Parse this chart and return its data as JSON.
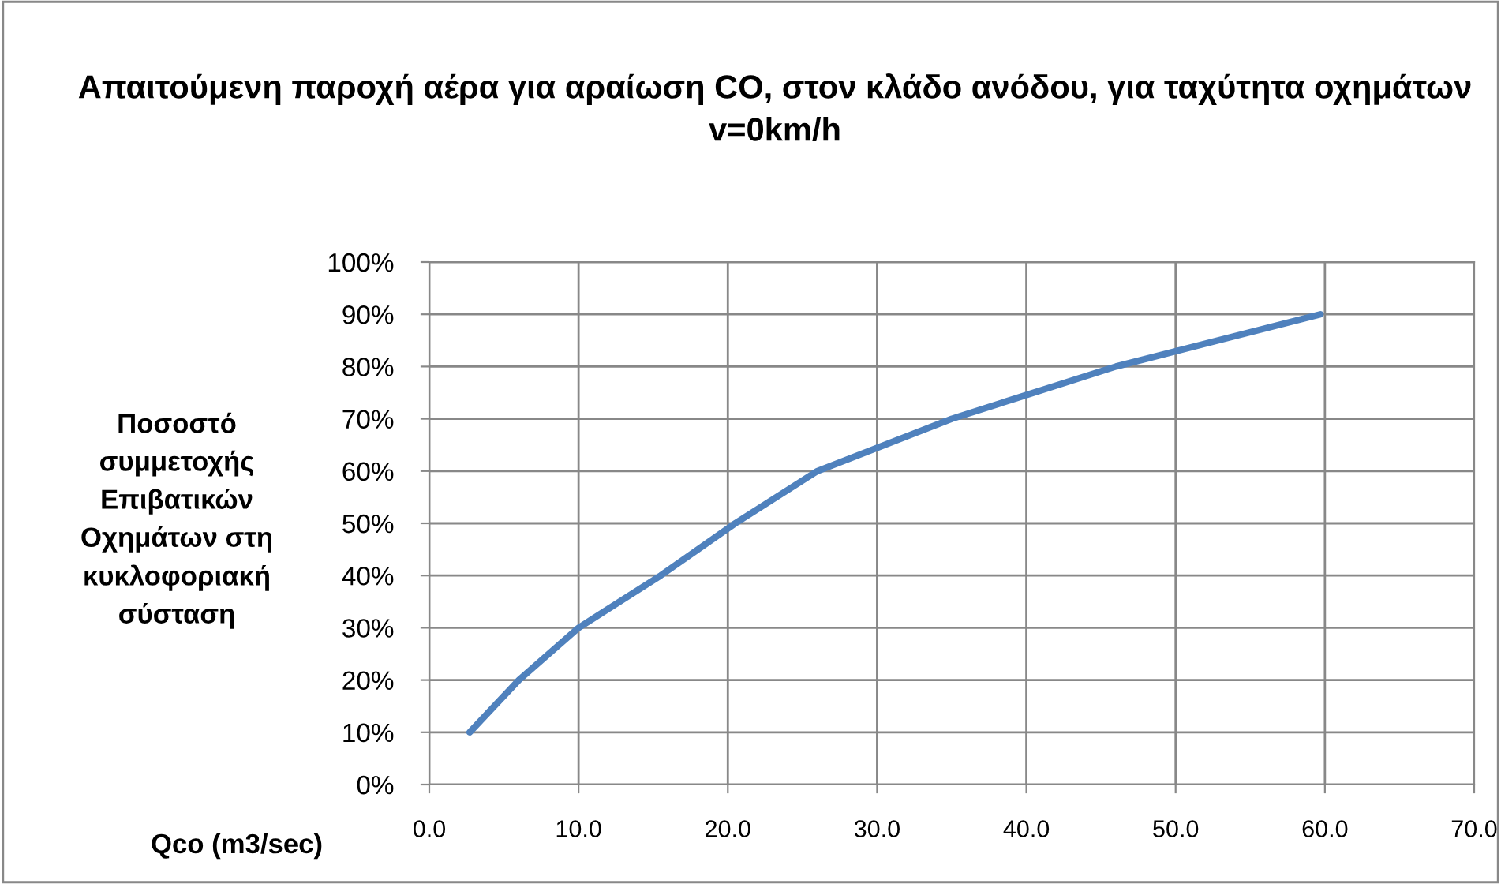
{
  "chart_data": {
    "type": "line",
    "title": "Απαιτούμενη παροχή αέρα για αραίωση CO, στον κλάδο ανόδου, για ταχύτητα οχημάτων v=0km/h",
    "xlabel": "Qco (m3/sec)",
    "ylabel": "Ποσοστό συμμετοχής Επιβατικών Οχημάτων στη κυκλοφοριακή σύσταση",
    "series": [
      {
        "color": "#4f81bd",
        "x": [
          2.7,
          6.0,
          10.0,
          15.5,
          20.5,
          26.0,
          35.0,
          46.0,
          59.7
        ],
        "values": [
          10,
          20,
          30,
          40,
          50,
          60,
          70,
          80,
          90
        ]
      }
    ],
    "xlim": [
      0,
      70
    ],
    "ylim": [
      0,
      100
    ],
    "xticks": [
      {
        "value": 0,
        "label": "0.0"
      },
      {
        "value": 10,
        "label": "10.0"
      },
      {
        "value": 20,
        "label": "20.0"
      },
      {
        "value": 30,
        "label": "30.0"
      },
      {
        "value": 40,
        "label": "40.0"
      },
      {
        "value": 50,
        "label": "50.0"
      },
      {
        "value": 60,
        "label": "60.0"
      },
      {
        "value": 70,
        "label": "70.0"
      }
    ],
    "yticks": [
      {
        "value": 0,
        "label": "0%"
      },
      {
        "value": 10,
        "label": "10%"
      },
      {
        "value": 20,
        "label": "20%"
      },
      {
        "value": 30,
        "label": "30%"
      },
      {
        "value": 40,
        "label": "40%"
      },
      {
        "value": 50,
        "label": "50%"
      },
      {
        "value": 60,
        "label": "60%"
      },
      {
        "value": 70,
        "label": "70%"
      },
      {
        "value": 80,
        "label": "80%"
      },
      {
        "value": 90,
        "label": "90%"
      },
      {
        "value": 100,
        "label": "100%"
      }
    ],
    "grid": true,
    "line_style": "solid"
  }
}
